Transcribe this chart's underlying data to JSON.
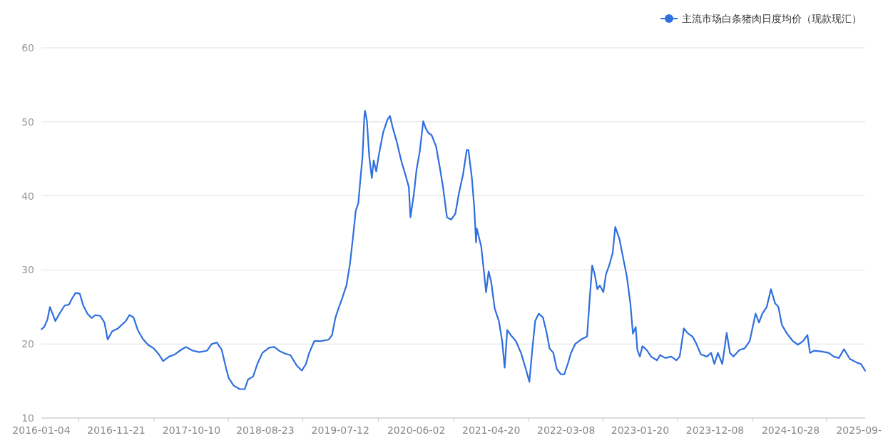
{
  "chart_data": {
    "type": "line",
    "x": [
      "2016-01-05",
      "2016-01-16",
      "2016-01-30",
      "2016-02-10",
      "2016-02-21",
      "2016-03-04",
      "2016-03-22",
      "2016-04-13",
      "2016-05-01",
      "2016-05-16",
      "2016-05-30",
      "2016-06-17",
      "2016-07-02",
      "2016-07-20",
      "2016-08-07",
      "2016-08-22",
      "2016-09-13",
      "2016-10-01",
      "2016-10-15",
      "2016-11-03",
      "2016-11-28",
      "2017-01-01",
      "2017-01-16",
      "2017-02-03",
      "2017-02-21",
      "2017-03-15",
      "2017-04-06",
      "2017-05-01",
      "2017-05-23",
      "2017-06-10",
      "2017-07-06",
      "2017-07-31",
      "2017-08-26",
      "2017-09-16",
      "2017-10-15",
      "2017-11-13",
      "2017-12-16",
      "2018-01-05",
      "2018-01-27",
      "2018-02-17",
      "2018-03-08",
      "2018-03-19",
      "2018-04-09",
      "2018-05-05",
      "2018-05-27",
      "2018-06-10",
      "2018-07-02",
      "2018-07-20",
      "2018-08-11",
      "2018-09-09",
      "2018-10-01",
      "2018-10-26",
      "2018-11-17",
      "2018-12-09",
      "2019-01-05",
      "2019-01-27",
      "2019-02-14",
      "2019-02-28",
      "2019-03-22",
      "2019-04-20",
      "2019-05-23",
      "2019-06-06",
      "2019-06-21",
      "2019-07-06",
      "2019-07-20",
      "2019-08-07",
      "2019-08-22",
      "2019-09-05",
      "2019-09-16",
      "2019-09-27",
      "2019-10-05",
      "2019-10-15",
      "2019-10-23",
      "2019-10-26",
      "2019-11-03",
      "2019-11-13",
      "2019-11-24",
      "2019-12-02",
      "2019-12-13",
      "2019-12-24",
      "2020-01-12",
      "2020-01-30",
      "2020-02-10",
      "2020-02-21",
      "2020-03-11",
      "2020-03-29",
      "2020-04-16",
      "2020-05-01",
      "2020-05-08",
      "2020-05-23",
      "2020-06-03",
      "2020-06-17",
      "2020-07-02",
      "2020-07-13",
      "2020-07-24",
      "2020-08-07",
      "2020-08-26",
      "2020-09-13",
      "2020-09-24",
      "2020-10-12",
      "2020-10-30",
      "2020-11-17",
      "2020-12-02",
      "2020-12-20",
      "2021-01-05",
      "2021-01-12",
      "2021-01-27",
      "2021-02-06",
      "2021-02-14",
      "2021-02-17",
      "2021-03-08",
      "2021-03-19",
      "2021-03-29",
      "2021-04-09",
      "2021-04-20",
      "2021-05-05",
      "2021-05-23",
      "2021-06-06",
      "2021-06-17",
      "2021-06-28",
      "2021-07-13",
      "2021-08-04",
      "2021-08-26",
      "2021-09-16",
      "2021-10-01",
      "2021-10-15",
      "2021-10-26",
      "2021-11-10",
      "2021-11-28",
      "2021-12-13",
      "2021-12-27",
      "2022-01-12",
      "2022-01-27",
      "2022-02-14",
      "2022-02-28",
      "2022-03-15",
      "2022-03-29",
      "2022-04-16",
      "2022-05-16",
      "2022-06-06",
      "2022-06-17",
      "2022-06-28",
      "2022-07-09",
      "2022-07-20",
      "2022-07-31",
      "2022-08-15",
      "2022-08-26",
      "2022-09-09",
      "2022-09-24",
      "2022-10-05",
      "2022-10-23",
      "2022-11-10",
      "2022-11-24",
      "2022-12-09",
      "2022-12-20",
      "2023-01-01",
      "2023-01-08",
      "2023-01-19",
      "2023-01-30",
      "2023-02-17",
      "2023-03-08",
      "2023-04-02",
      "2023-04-16",
      "2023-05-08",
      "2023-06-03",
      "2023-06-25",
      "2023-07-09",
      "2023-07-27",
      "2023-08-11",
      "2023-09-02",
      "2023-09-16",
      "2023-10-08",
      "2023-11-03",
      "2023-11-21",
      "2023-12-05",
      "2023-12-20",
      "2024-01-08",
      "2024-01-27",
      "2024-02-10",
      "2024-02-25",
      "2024-03-22",
      "2024-04-13",
      "2024-05-05",
      "2024-05-30",
      "2024-06-14",
      "2024-06-28",
      "2024-07-17",
      "2024-08-04",
      "2024-08-22",
      "2024-09-05",
      "2024-09-20",
      "2024-10-12",
      "2024-11-06",
      "2024-11-28",
      "2024-12-20",
      "2025-01-08",
      "2025-01-19",
      "2025-02-06",
      "2025-03-08",
      "2025-04-09",
      "2025-05-01",
      "2025-05-23",
      "2025-06-14",
      "2025-07-09",
      "2025-08-07",
      "2025-08-26",
      "2025-09-13"
    ],
    "series": [
      {
        "name": "主流市场白条猪肉日度均价（现款现汇）",
        "color": "#2f6fde",
        "values": [
          22.0,
          22.3,
          23.3,
          25.0,
          24.1,
          23.1,
          24.1,
          25.2,
          25.3,
          26.2,
          26.9,
          26.8,
          25.2,
          24.1,
          23.5,
          23.9,
          23.8,
          22.9,
          20.6,
          21.7,
          22.1,
          23.1,
          23.9,
          23.6,
          21.9,
          20.7,
          19.9,
          19.4,
          18.6,
          17.7,
          18.3,
          18.6,
          19.2,
          19.6,
          19.1,
          18.9,
          19.1,
          20.0,
          20.2,
          19.2,
          16.7,
          15.4,
          14.4,
          13.9,
          13.9,
          15.2,
          15.6,
          17.3,
          18.8,
          19.5,
          19.6,
          19.0,
          18.7,
          18.5,
          17.1,
          16.4,
          17.3,
          18.8,
          20.4,
          20.4,
          20.6,
          21.2,
          23.6,
          25.0,
          26.2,
          27.9,
          30.8,
          34.7,
          38.0,
          39.0,
          41.9,
          45.3,
          50.8,
          51.5,
          50.1,
          45.3,
          42.4,
          44.8,
          43.3,
          45.5,
          48.6,
          50.3,
          50.8,
          49.3,
          47.2,
          44.8,
          42.9,
          41.2,
          37.1,
          40.3,
          43.5,
          46.0,
          50.1,
          49.1,
          48.5,
          48.2,
          46.7,
          43.5,
          41.4,
          37.1,
          36.8,
          37.6,
          40.3,
          42.9,
          46.2,
          46.2,
          42.4,
          38.5,
          33.7,
          35.6,
          33.2,
          30.0,
          27.0,
          29.8,
          28.4,
          24.8,
          23.1,
          20.4,
          16.8,
          21.9,
          21.2,
          20.4,
          18.8,
          16.6,
          14.9,
          19.7,
          23.1,
          24.1,
          23.6,
          21.7,
          19.4,
          18.8,
          16.6,
          15.9,
          15.9,
          17.3,
          18.8,
          20.0,
          20.7,
          21.0,
          26.0,
          30.6,
          29.4,
          27.4,
          27.9,
          27.0,
          29.4,
          30.6,
          32.3,
          35.8,
          34.2,
          31.3,
          29.1,
          25.5,
          21.4,
          22.3,
          19.2,
          18.3,
          19.7,
          19.2,
          18.3,
          17.8,
          18.5,
          18.1,
          18.3,
          17.8,
          18.3,
          22.1,
          21.5,
          21.0,
          20.2,
          18.6,
          18.3,
          18.8,
          17.3,
          18.8,
          17.3,
          21.5,
          18.8,
          18.3,
          19.2,
          19.4,
          20.4,
          24.1,
          22.9,
          24.1,
          25.0,
          27.4,
          25.5,
          25.0,
          22.6,
          21.4,
          20.4,
          19.9,
          20.4,
          21.2,
          18.8,
          19.1,
          19.0,
          18.8,
          18.3,
          18.1,
          19.3,
          18.0,
          17.5,
          17.3,
          16.4
        ]
      }
    ],
    "xlim": [
      "2016-01-04",
      "2025-09-13"
    ],
    "xticks": [
      "2016-01-04",
      "2016-11-21",
      "2017-10-10",
      "2018-08-23",
      "2019-07-12",
      "2020-06-02",
      "2021-04-20",
      "2022-03-08",
      "2023-01-20",
      "2023-12-08",
      "2024-10-28",
      {
        "value": "2025-09-01",
        "label": "2025-09-"
      }
    ],
    "ylim": [
      10,
      60
    ],
    "yticks": [
      10,
      20,
      30,
      40,
      50,
      60
    ],
    "grid": "y",
    "legend": "top right",
    "line_style": "solid"
  }
}
